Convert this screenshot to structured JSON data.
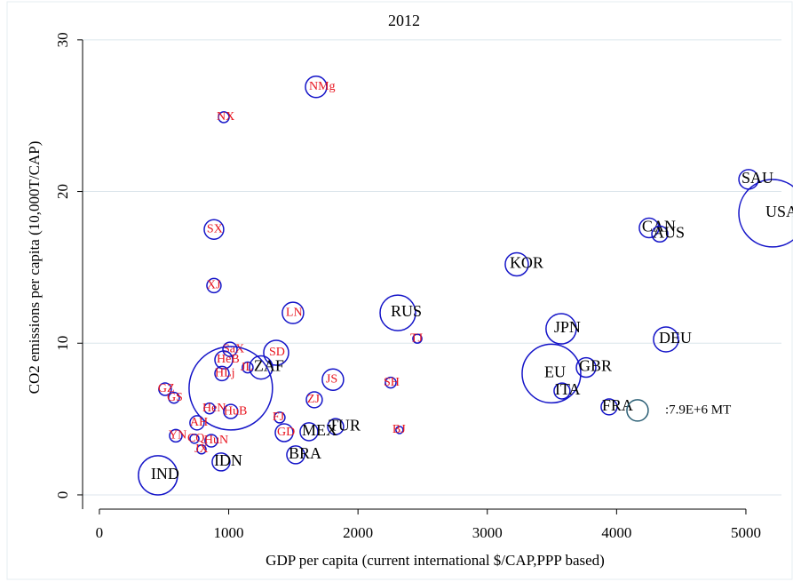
{
  "chart_data": {
    "type": "scatter",
    "title": "2012",
    "x_label": "GDP per capita (current international $/CAP,PPP based)",
    "y_label": "CO2 emissions per capita (10,000T/CAP)",
    "xlim": [
      -130,
      5275
    ],
    "ylim": [
      -0.94,
      30.87
    ],
    "xticks": [
      0,
      1000,
      2000,
      3000,
      4000,
      5000
    ],
    "yticks": [
      0,
      10,
      20,
      30
    ],
    "grid": true,
    "marker_color": "#1414c8",
    "labels": [
      "IND",
      "USA",
      "SAU",
      "CAN",
      "AUS",
      "KOR",
      "RUS",
      "JPN",
      "DEU",
      "EU",
      "GBR",
      "ITA",
      "FRA",
      "NMg",
      "NX",
      "SX",
      "XJ",
      "LN",
      "TJ",
      "SaX",
      "SD",
      "ZAF",
      "HeB",
      "HLj",
      "JL",
      null,
      "JS",
      "SH",
      "GZ",
      "GS",
      "ZJ",
      "HeN",
      "HuB",
      "FJ",
      "AH",
      "GD",
      "TUR",
      "MEX",
      "BJ",
      "YN",
      "HuN",
      "CQ",
      "JX",
      "IDN",
      "BRA"
    ],
    "label_colors": [
      "#000000",
      "#000000",
      "#000000",
      "#000000",
      "#000000",
      "#000000",
      "#000000",
      "#000000",
      "#000000",
      "#000000",
      "#000000",
      "#000000",
      "#000000",
      "#e8141e",
      "#e8141e",
      "#e8141e",
      "#e8141e",
      "#e8141e",
      "#e8141e",
      "#e8141e",
      "#e8141e",
      "#000000",
      "#e8141e",
      "#e8141e",
      "#e8141e",
      "#e8141e",
      "#e8141e",
      "#e8141e",
      "#e8141e",
      "#e8141e",
      "#e8141e",
      "#e8141e",
      "#e8141e",
      "#e8141e",
      "#e8141e",
      "#e8141e",
      "#000000",
      "#000000",
      "#e8141e",
      "#e8141e",
      "#e8141e",
      "#e8141e",
      "#e8141e",
      "#000000",
      "#000000"
    ],
    "x": [
      453,
      5206,
      5021,
      4251,
      4334,
      3228,
      2308,
      3571,
      4382,
      3496,
      3764,
      3578,
      3942,
      1676,
      962,
      886,
      886,
      1497,
      2459,
      1010,
      1367,
      1250,
      962,
      948,
      1147,
      1016,
      1806,
      2253,
      508,
      577,
      1662,
      852,
      1016,
      1394,
      755,
      1429,
      1827,
      1621,
      2321,
      591,
      865,
      735,
      790,
      941,
      1518
    ],
    "values": [
      1.29,
      18.57,
      20.8,
      17.6,
      17.2,
      15.2,
      12.0,
      10.95,
      10.25,
      8.0,
      8.4,
      6.85,
      5.8,
      26.9,
      24.9,
      17.5,
      13.8,
      12.0,
      10.3,
      9.6,
      9.37,
      8.4,
      8.9,
      8.0,
      8.4,
      7.03,
      7.6,
      7.4,
      6.97,
      6.4,
      6.27,
      5.7,
      5.5,
      5.1,
      4.75,
      4.1,
      4.5,
      4.16,
      4.28,
      3.9,
      3.57,
      3.7,
      3.0,
      2.17,
      2.64
    ],
    "sizes": [
      26600000,
      79000000,
      6600000,
      6600000,
      4400000,
      9300000,
      21900000,
      15900000,
      10800000,
      59700000,
      6600000,
      4400000,
      4400000,
      7900000,
      2000000,
      6600000,
      3500000,
      7900000,
      1400000,
      3500000,
      10800000,
      9300000,
      5500000,
      3500000,
      2000000,
      121000000,
      7900000,
      2000000,
      2700000,
      2000000,
      4400000,
      2000000,
      3500000,
      2000000,
      3500000,
      5500000,
      4400000,
      5500000,
      900000,
      2700000,
      2700000,
      1400000,
      1400000,
      5500000,
      5500000
    ],
    "size_legend": {
      "value": 7900000,
      "label": ":7.9E+6 MT",
      "color": "#2b5f75"
    }
  }
}
